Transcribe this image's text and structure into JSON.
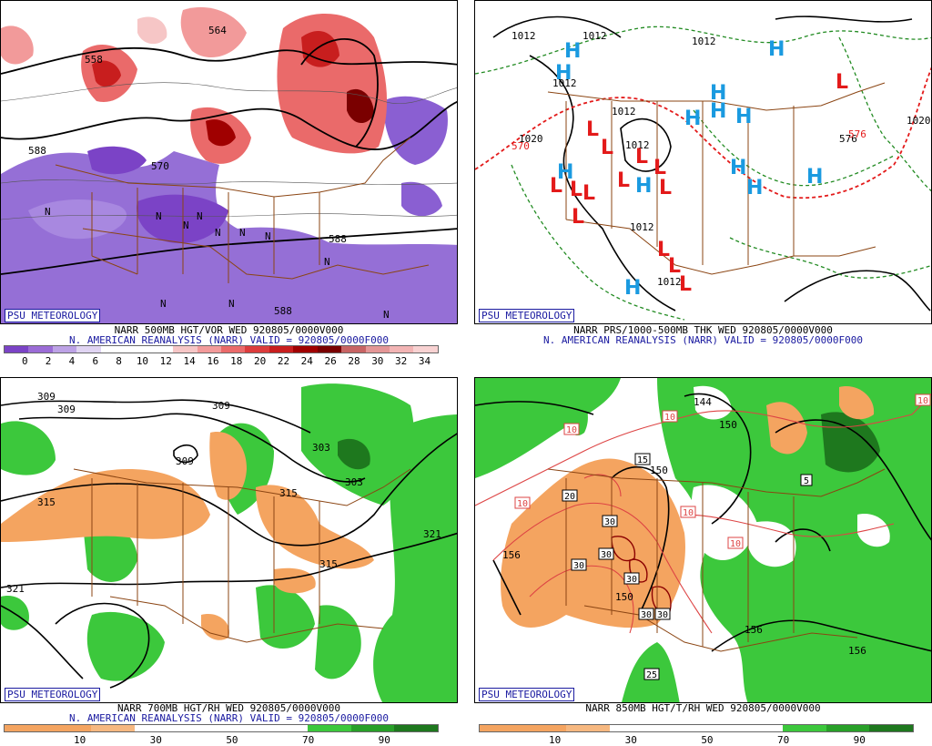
{
  "branding": "PSU METEOROLOGY",
  "panels": [
    {
      "caption_line1": "NARR 500MB HGT/VOR WED 920805/0000V000",
      "caption_line2": "N. AMERICAN REANALYSIS (NARR) VALID = 920805/0000F000",
      "contour_labels": [
        "588",
        "588",
        "588",
        "564",
        "570",
        "558"
      ],
      "markers": [
        "N",
        "N",
        "N",
        "N",
        "N",
        "N",
        "N",
        "N",
        "N",
        "N",
        "N"
      ],
      "colorbar": {
        "colors": [
          "#7b43c6",
          "#9b6cd6",
          "#bda2e6",
          "#e0d4f2",
          "#ffffff",
          "#ffffff",
          "#ffffff",
          "#f6c6c6",
          "#f29a9a",
          "#ea6a6a",
          "#dc3c3c",
          "#c81e1e",
          "#a00000",
          "#7a0000",
          "#c86464",
          "#e49696",
          "#f2b4b4",
          "#f8d2d2"
        ],
        "ticks": [
          "0",
          "2",
          "4",
          "6",
          "8",
          "10",
          "12",
          "14",
          "16",
          "18",
          "20",
          "22",
          "24",
          "26",
          "28",
          "30",
          "32",
          "34"
        ]
      }
    },
    {
      "caption_line1": "NARR PRS/1000-500MB THK WED 920805/0000V000",
      "caption_line2": "N. AMERICAN REANALYSIS (NARR) VALID = 920805/0000F000",
      "contour_labels": [
        "1012",
        "1012",
        "1012",
        "1020",
        "1012",
        "1012",
        "1012",
        "1012",
        "1012",
        "1020",
        "576",
        "570",
        "576"
      ],
      "highs": [
        "H",
        "H",
        "H",
        "H",
        "H",
        "H",
        "H",
        "H",
        "H",
        "H",
        "H",
        "H",
        "H"
      ],
      "lows": [
        "L",
        "L",
        "L",
        "L",
        "L",
        "L",
        "L",
        "L",
        "L",
        "L",
        "L",
        "L",
        "L",
        "L"
      ]
    },
    {
      "caption_line1": "NARR 700MB HGT/RH WED 920805/0000V000",
      "caption_line2": "N. AMERICAN REANALYSIS (NARR) VALID = 920805/0000F000",
      "contour_labels": [
        "309",
        "309",
        "309",
        "309",
        "303",
        "303",
        "315",
        "315",
        "315",
        "321",
        "321"
      ],
      "colorbar": {
        "colors": [
          "#f4a460",
          "#f4a460",
          "#f6b880",
          "#ffffff",
          "#ffffff",
          "#ffffff",
          "#ffffff",
          "#3cc83c",
          "#28a028",
          "#1e781e"
        ],
        "ticks": [
          "10",
          "30",
          "50",
          "70",
          "90"
        ]
      }
    },
    {
      "caption_line1": "NARR 850MB HGT/T/RH WED 920805/0000V000",
      "contour_labels": [
        "144",
        "150",
        "150",
        "150",
        "156",
        "156",
        "156"
      ],
      "temp_labels": [
        "10",
        "10",
        "10",
        "10",
        "10",
        "10",
        "15",
        "20",
        "30",
        "30",
        "30",
        "30",
        "30",
        "30",
        "25",
        "5"
      ],
      "colorbar": {
        "colors": [
          "#f4a460",
          "#f4a460",
          "#f6b880",
          "#ffffff",
          "#ffffff",
          "#ffffff",
          "#ffffff",
          "#3cc83c",
          "#28a028",
          "#1e781e"
        ],
        "ticks": [
          "10",
          "30",
          "50",
          "70",
          "90"
        ]
      }
    }
  ]
}
